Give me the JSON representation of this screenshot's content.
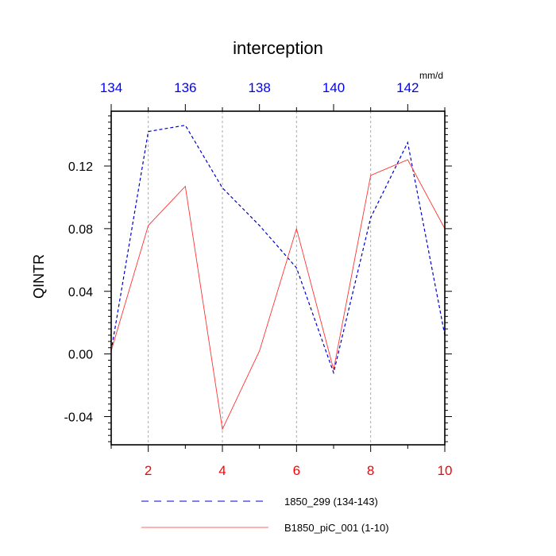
{
  "chart_data": {
    "type": "line",
    "title": "interception",
    "units": "mm/d",
    "ylabel": "QINTR",
    "xlabel": "",
    "ylim": [
      -0.058,
      0.155
    ],
    "yticks": [
      -0.04,
      0.0,
      0.04,
      0.08,
      0.12
    ],
    "ytick_labels": [
      "-0.04",
      "0.00",
      "0.04",
      "0.08",
      "0.12"
    ],
    "bottom_axis": {
      "xlim": [
        1,
        10
      ],
      "ticks": [
        2,
        4,
        6,
        8,
        10
      ],
      "tick_labels": [
        "2",
        "4",
        "6",
        "8",
        "10"
      ],
      "color": "#ff0000"
    },
    "top_axis": {
      "xlim": [
        134,
        143
      ],
      "ticks": [
        134,
        136,
        138,
        140,
        142
      ],
      "tick_labels": [
        "134",
        "136",
        "138",
        "140",
        "142"
      ],
      "color": "#0000ff"
    },
    "vertical_grid_at": [
      2,
      4,
      6,
      8
    ],
    "series": [
      {
        "name": "1850_299 (134-143)",
        "axis": "top",
        "color": "#0000cc",
        "dash": "dashed",
        "x": [
          134,
          135,
          136,
          137,
          138,
          139,
          140,
          141,
          142,
          143
        ],
        "values": [
          0.002,
          0.142,
          0.146,
          0.106,
          0.082,
          0.055,
          -0.012,
          0.087,
          0.135,
          0.012
        ]
      },
      {
        "name": "B1850_piC_001 (1-10)",
        "axis": "bottom",
        "color": "#ff3333",
        "dash": "solid",
        "x": [
          1,
          2,
          3,
          4,
          5,
          6,
          7,
          8,
          9,
          10
        ],
        "values": [
          0.002,
          0.082,
          0.107,
          -0.048,
          0.002,
          0.08,
          -0.01,
          0.114,
          0.124,
          0.08
        ]
      }
    ],
    "legend_position": "bottom"
  }
}
